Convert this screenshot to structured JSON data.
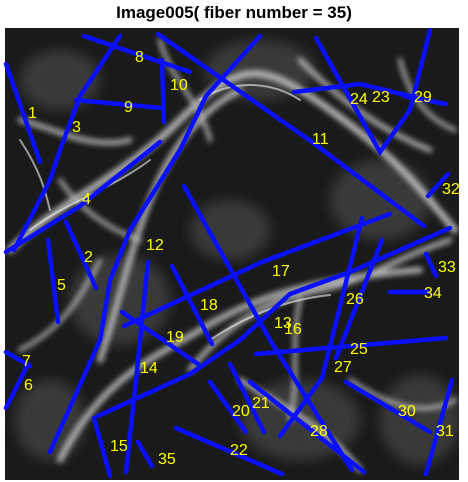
{
  "title": "Image005( fiber number = 35)",
  "colors": {
    "fiber": "#0a10ff",
    "label": "#ffff00",
    "background_dark": "#141414",
    "background_light": "#d8d8d8"
  },
  "fibers": [
    {
      "label": "1"
    },
    {
      "label": "2"
    },
    {
      "label": "3"
    },
    {
      "label": "4"
    },
    {
      "label": "5"
    },
    {
      "label": "6"
    },
    {
      "label": "7"
    },
    {
      "label": "8"
    },
    {
      "label": "9"
    },
    {
      "label": "10"
    },
    {
      "label": "11"
    },
    {
      "label": "12"
    },
    {
      "label": "13"
    },
    {
      "label": "14"
    },
    {
      "label": "15"
    },
    {
      "label": "16"
    },
    {
      "label": "17"
    },
    {
      "label": "18"
    },
    {
      "label": "19"
    },
    {
      "label": "20"
    },
    {
      "label": "21"
    },
    {
      "label": "22"
    },
    {
      "label": "23"
    },
    {
      "label": "24"
    },
    {
      "label": "25"
    },
    {
      "label": "26"
    },
    {
      "label": "27"
    },
    {
      "label": "28"
    },
    {
      "label": "29"
    },
    {
      "label": "30"
    },
    {
      "label": "31"
    },
    {
      "label": "32"
    },
    {
      "label": "33"
    },
    {
      "label": "34"
    },
    {
      "label": "35"
    }
  ]
}
